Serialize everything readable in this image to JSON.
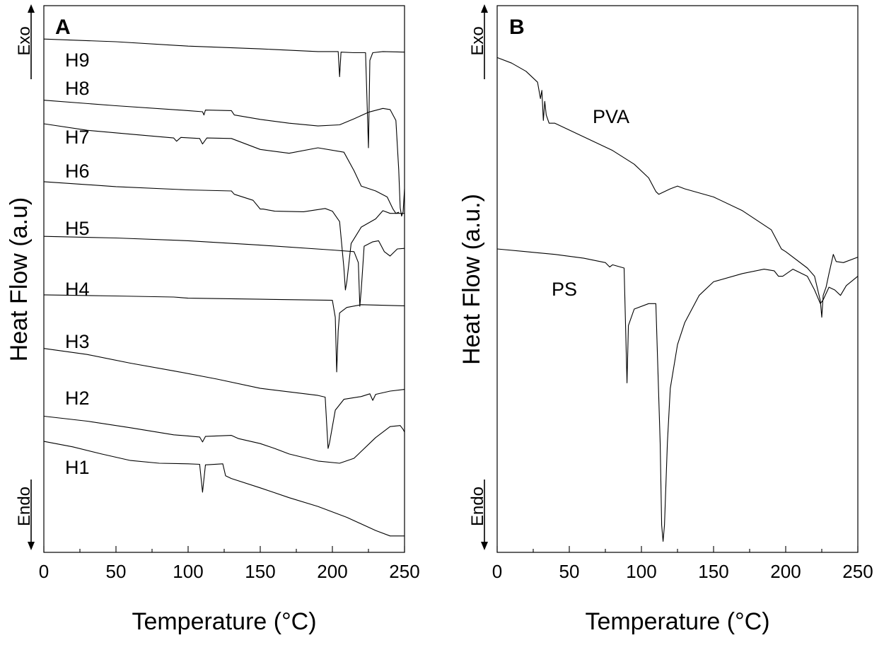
{
  "chart_data": [
    {
      "type": "line",
      "panel": "A",
      "xlabel": "Temperature (°C)",
      "ylabel": "Heat Flow (a.u)",
      "xlim": [
        0,
        250
      ],
      "xticks": [
        0,
        50,
        100,
        150,
        200,
        250
      ],
      "exo_label": "Exo",
      "endo_label": "Endo",
      "series": [
        {
          "name": "H9",
          "points": [
            [
              0,
              0.939
            ],
            [
              50,
              0.934
            ],
            [
              100,
              0.926
            ],
            [
              150,
              0.921
            ],
            [
              190,
              0.916
            ],
            [
              204,
              0.916
            ],
            [
              205,
              0.87
            ],
            [
              206,
              0.915
            ],
            [
              215,
              0.914
            ],
            [
              223,
              0.914
            ],
            [
              225,
              0.74
            ],
            [
              226,
              0.9
            ],
            [
              228,
              0.914
            ],
            [
              235,
              0.916
            ],
            [
              250,
              0.915
            ]
          ]
        },
        {
          "name": "H8",
          "points": [
            [
              0,
              0.827
            ],
            [
              50,
              0.817
            ],
            [
              100,
              0.808
            ],
            [
              110,
              0.806
            ],
            [
              111,
              0.8
            ],
            [
              112,
              0.809
            ],
            [
              130,
              0.808
            ],
            [
              132,
              0.8
            ],
            [
              150,
              0.792
            ],
            [
              170,
              0.785
            ],
            [
              190,
              0.78
            ],
            [
              205,
              0.782
            ],
            [
              215,
              0.793
            ],
            [
              225,
              0.805
            ],
            [
              235,
              0.812
            ],
            [
              240,
              0.81
            ],
            [
              244,
              0.79
            ],
            [
              246,
              0.7
            ],
            [
              247,
              0.63
            ],
            [
              248,
              0.615
            ],
            [
              249,
              0.623
            ],
            [
              250,
              0.665
            ]
          ]
        },
        {
          "name": "H7",
          "points": [
            [
              0,
              0.784
            ],
            [
              30,
              0.772
            ],
            [
              60,
              0.765
            ],
            [
              90,
              0.758
            ],
            [
              92,
              0.752
            ],
            [
              95,
              0.759
            ],
            [
              108,
              0.757
            ],
            [
              110,
              0.747
            ],
            [
              113,
              0.758
            ],
            [
              130,
              0.757
            ],
            [
              150,
              0.737
            ],
            [
              170,
              0.73
            ],
            [
              190,
              0.74
            ],
            [
              208,
              0.732
            ],
            [
              215,
              0.698
            ],
            [
              220,
              0.67
            ],
            [
              230,
              0.661
            ],
            [
              238,
              0.65
            ],
            [
              242,
              0.628
            ],
            [
              244,
              0.62
            ],
            [
              246,
              0.622
            ]
          ]
        },
        {
          "name": "H6",
          "points": [
            [
              0,
              0.678
            ],
            [
              50,
              0.669
            ],
            [
              100,
              0.663
            ],
            [
              130,
              0.661
            ],
            [
              132,
              0.655
            ],
            [
              145,
              0.644
            ],
            [
              150,
              0.628
            ],
            [
              152,
              0.628
            ],
            [
              160,
              0.624
            ],
            [
              180,
              0.623
            ],
            [
              195,
              0.629
            ],
            [
              200,
              0.624
            ],
            [
              205,
              0.605
            ],
            [
              208,
              0.52
            ],
            [
              209,
              0.48
            ],
            [
              210,
              0.495
            ],
            [
              213,
              0.565
            ],
            [
              220,
              0.595
            ],
            [
              230,
              0.61
            ],
            [
              235,
              0.625
            ],
            [
              240,
              0.62
            ],
            [
              250,
              0.62
            ]
          ]
        },
        {
          "name": "H5",
          "points": [
            [
              0,
              0.578
            ],
            [
              50,
              0.575
            ],
            [
              100,
              0.57
            ],
            [
              150,
              0.562
            ],
            [
              200,
              0.553
            ],
            [
              215,
              0.55
            ],
            [
              218,
              0.53
            ],
            [
              219,
              0.45
            ],
            [
              220,
              0.48
            ],
            [
              222,
              0.56
            ],
            [
              228,
              0.568
            ],
            [
              232,
              0.57
            ],
            [
              236,
              0.55
            ],
            [
              240,
              0.542
            ],
            [
              245,
              0.555
            ],
            [
              250,
              0.556
            ]
          ]
        },
        {
          "name": "H4",
          "points": [
            [
              0,
              0.471
            ],
            [
              50,
              0.469
            ],
            [
              90,
              0.467
            ],
            [
              100,
              0.465
            ],
            [
              150,
              0.463
            ],
            [
              200,
              0.461
            ],
            [
              202,
              0.43
            ],
            [
              203,
              0.33
            ],
            [
              204,
              0.405
            ],
            [
              205,
              0.438
            ],
            [
              210,
              0.448
            ],
            [
              220,
              0.453
            ],
            [
              250,
              0.451
            ]
          ]
        },
        {
          "name": "H3",
          "points": [
            [
              0,
              0.373
            ],
            [
              30,
              0.362
            ],
            [
              60,
              0.346
            ],
            [
              90,
              0.332
            ],
            [
              120,
              0.317
            ],
            [
              150,
              0.3
            ],
            [
              190,
              0.287
            ],
            [
              195,
              0.284
            ],
            [
              197,
              0.19
            ],
            [
              198,
              0.2
            ],
            [
              202,
              0.26
            ],
            [
              208,
              0.28
            ],
            [
              220,
              0.285
            ],
            [
              226,
              0.29
            ],
            [
              228,
              0.278
            ],
            [
              230,
              0.289
            ],
            [
              240,
              0.295
            ],
            [
              250,
              0.298
            ]
          ]
        },
        {
          "name": "H2",
          "points": [
            [
              0,
              0.249
            ],
            [
              30,
              0.24
            ],
            [
              60,
              0.228
            ],
            [
              90,
              0.215
            ],
            [
              100,
              0.213
            ],
            [
              108,
              0.211
            ],
            [
              110,
              0.202
            ],
            [
              112,
              0.212
            ],
            [
              130,
              0.214
            ],
            [
              135,
              0.208
            ],
            [
              150,
              0.199
            ],
            [
              160,
              0.19
            ],
            [
              170,
              0.18
            ],
            [
              190,
              0.167
            ],
            [
              205,
              0.163
            ],
            [
              215,
              0.172
            ],
            [
              230,
              0.21
            ],
            [
              240,
              0.23
            ],
            [
              247,
              0.232
            ],
            [
              249,
              0.225
            ],
            [
              250,
              0.22
            ]
          ]
        },
        {
          "name": "H1",
          "points": [
            [
              0,
              0.203
            ],
            [
              20,
              0.193
            ],
            [
              40,
              0.18
            ],
            [
              60,
              0.168
            ],
            [
              80,
              0.163
            ],
            [
              100,
              0.162
            ],
            [
              108,
              0.161
            ],
            [
              110,
              0.11
            ],
            [
              112,
              0.16
            ],
            [
              124,
              0.162
            ],
            [
              126,
              0.14
            ],
            [
              130,
              0.135
            ],
            [
              150,
              0.118
            ],
            [
              170,
              0.1
            ],
            [
              190,
              0.084
            ],
            [
              210,
              0.064
            ],
            [
              230,
              0.04
            ],
            [
              240,
              0.03
            ],
            [
              250,
              0.03
            ]
          ]
        }
      ]
    },
    {
      "type": "line",
      "panel": "B",
      "xlabel": "Temperature (°C)",
      "ylabel": "Heat Flow (a.u.)",
      "xlim": [
        0,
        250
      ],
      "xticks": [
        0,
        50,
        100,
        150,
        200,
        250
      ],
      "exo_label": "Exo",
      "endo_label": "Endo",
      "series": [
        {
          "name": "PVA",
          "points": [
            [
              0,
              0.905
            ],
            [
              10,
              0.895
            ],
            [
              20,
              0.88
            ],
            [
              28,
              0.86
            ],
            [
              30,
              0.83
            ],
            [
              31,
              0.845
            ],
            [
              32,
              0.79
            ],
            [
              33,
              0.825
            ],
            [
              34,
              0.8
            ],
            [
              36,
              0.785
            ],
            [
              40,
              0.785
            ],
            [
              60,
              0.76
            ],
            [
              80,
              0.735
            ],
            [
              95,
              0.71
            ],
            [
              105,
              0.685
            ],
            [
              110,
              0.66
            ],
            [
              112,
              0.655
            ],
            [
              120,
              0.665
            ],
            [
              125,
              0.67
            ],
            [
              130,
              0.665
            ],
            [
              150,
              0.65
            ],
            [
              170,
              0.625
            ],
            [
              190,
              0.59
            ],
            [
              197,
              0.555
            ],
            [
              200,
              0.55
            ],
            [
              215,
              0.52
            ],
            [
              220,
              0.505
            ],
            [
              224,
              0.46
            ],
            [
              225,
              0.43
            ],
            [
              226,
              0.47
            ],
            [
              228,
              0.485
            ],
            [
              230,
              0.51
            ],
            [
              233,
              0.545
            ],
            [
              235,
              0.532
            ],
            [
              240,
              0.53
            ],
            [
              250,
              0.54
            ]
          ]
        },
        {
          "name": "PS",
          "points": [
            [
              0,
              0.555
            ],
            [
              20,
              0.55
            ],
            [
              40,
              0.545
            ],
            [
              60,
              0.538
            ],
            [
              75,
              0.53
            ],
            [
              78,
              0.522
            ],
            [
              80,
              0.526
            ],
            [
              88,
              0.52
            ],
            [
              90,
              0.31
            ],
            [
              91,
              0.415
            ],
            [
              95,
              0.445
            ],
            [
              105,
              0.455
            ],
            [
              110,
              0.455
            ],
            [
              113,
              0.2
            ],
            [
              114,
              0.05
            ],
            [
              115,
              0.02
            ],
            [
              116,
              0.05
            ],
            [
              118,
              0.2
            ],
            [
              120,
              0.3
            ],
            [
              125,
              0.38
            ],
            [
              130,
              0.42
            ],
            [
              140,
              0.47
            ],
            [
              150,
              0.495
            ],
            [
              170,
              0.51
            ],
            [
              185,
              0.518
            ],
            [
              192,
              0.515
            ],
            [
              195,
              0.505
            ],
            [
              198,
              0.505
            ],
            [
              205,
              0.518
            ],
            [
              215,
              0.505
            ],
            [
              220,
              0.48
            ],
            [
              224,
              0.455
            ],
            [
              226,
              0.462
            ],
            [
              230,
              0.485
            ],
            [
              234,
              0.48
            ],
            [
              238,
              0.47
            ],
            [
              242,
              0.488
            ],
            [
              250,
              0.505
            ]
          ]
        }
      ]
    }
  ]
}
